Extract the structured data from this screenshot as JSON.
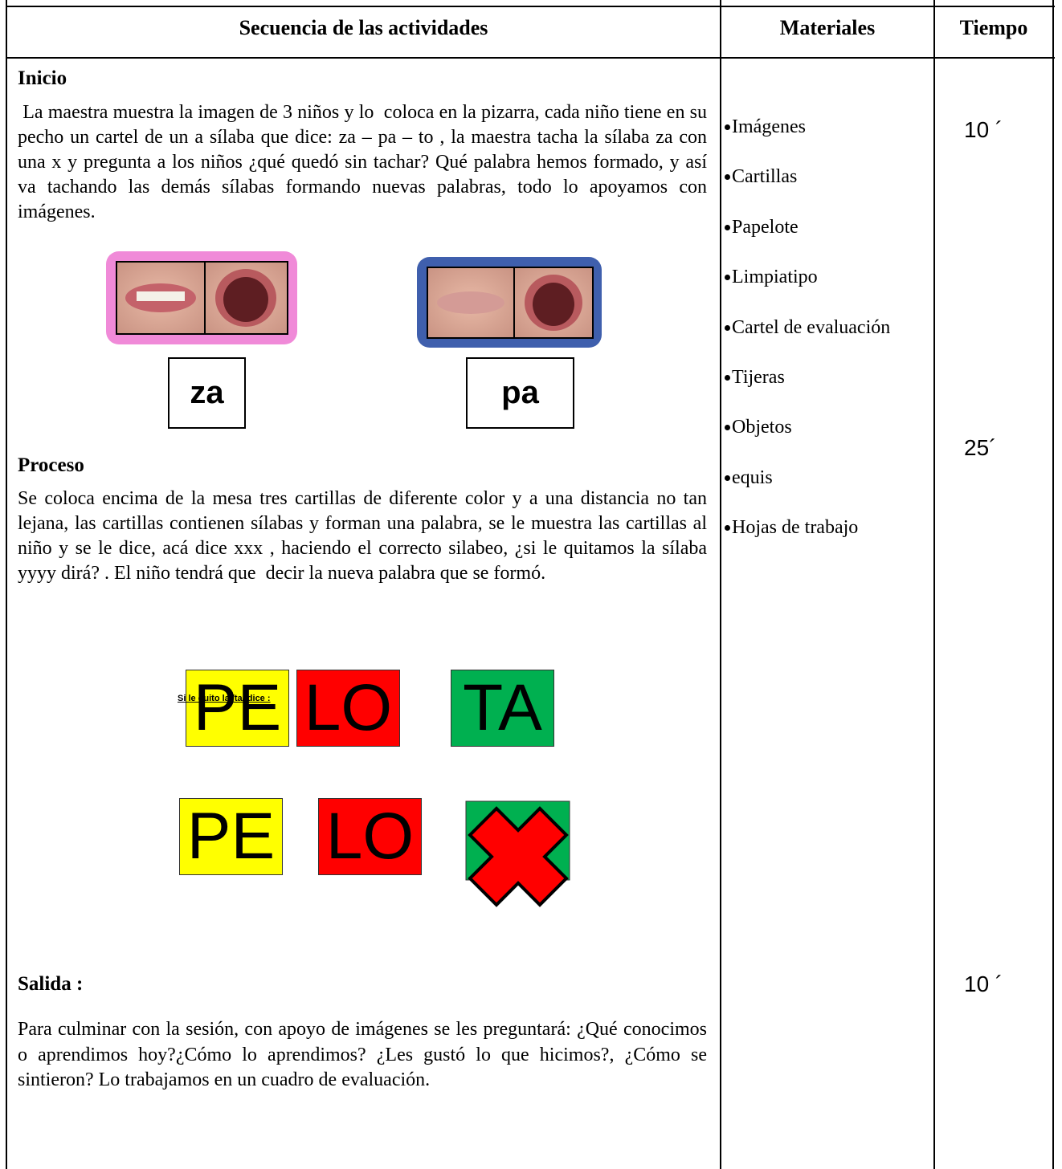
{
  "table": {
    "headers": [
      "Secuencia de las actividades",
      "Materiales",
      "Tiempo"
    ],
    "activities": {
      "inicio": {
        "heading": "Inicio",
        "text": " La maestra muestra la imagen de 3 niños y lo  coloca en la pizarra, cada niño tiene en su pecho un cartel de un a sílaba que dice: za – pa – to , la maestra tacha la sílaba za con una x y pregunta a los niños ¿qué quedó sin tachar? Qué palabra hemos formado, y así va tachando las demás sílabas formando nuevas palabras, todo lo apoyamos con imágenes."
      },
      "mouth_labels": [
        "za",
        "pa"
      ],
      "proceso": {
        "heading": "Proceso",
        "text": "Se coloca encima de la mesa tres cartillas de diferente color y a una distancia no tan lejana, las cartillas contienen sílabas y forman una palabra, se le muestra las cartillas al niño y se le dice, acá dice xxx , haciendo el correcto silabeo, ¿si le quitamos la sílaba yyyy dirá? . El niño tendrá que  decir la nueva palabra que se formó."
      },
      "cards_top": [
        "PE",
        "LO",
        "TA"
      ],
      "caption": "Si le quito la /ta/ dice :",
      "cards_bottom": [
        "PE",
        "LO"
      ],
      "salida": {
        "heading": "Salida :",
        "text": "Para culminar con la sesión, con apoyo de imágenes se les preguntará: ¿Qué conocimos o aprendimos hoy?¿Cómo lo aprendimos? ¿Les gustó lo que hicimos?, ¿Cómo se sintieron? Lo trabajamos en un cuadro de evaluación."
      }
    },
    "materials": [
      "Imágenes",
      "Cartillas",
      "Papelote",
      "Limpiatipo",
      "Cartel de evaluación",
      "Tijeras",
      "Objetos",
      "equis",
      "Hojas de trabajo"
    ],
    "times": [
      "10 ´",
      "25´",
      "10 ´"
    ]
  }
}
